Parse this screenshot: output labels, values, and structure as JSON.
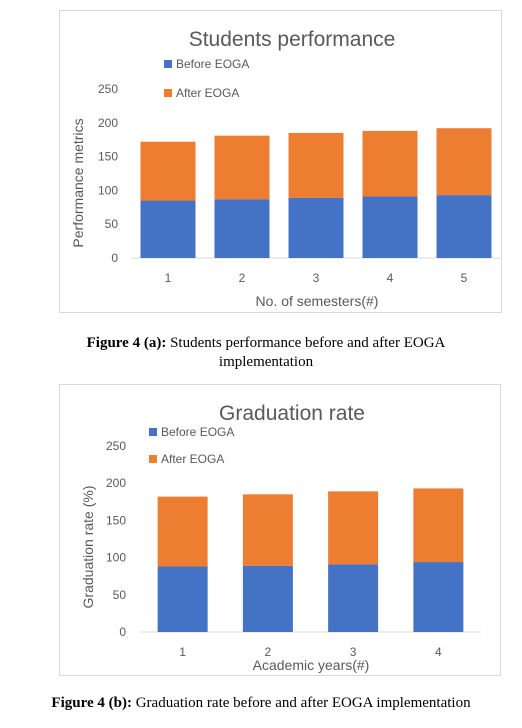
{
  "colors": {
    "before": "#4472c4",
    "after": "#ed7d31",
    "axis_text": "#595959",
    "grid": "#d9d9d9"
  },
  "chart_data": [
    {
      "type": "bar",
      "stacked": true,
      "title": "Students performance",
      "xlabel": "No. of semesters(#)",
      "ylabel": "Performance metrics",
      "categories": [
        "1",
        "2",
        "3",
        "4",
        "5"
      ],
      "yticks": [
        "0",
        "50",
        "100",
        "150",
        "200",
        "250"
      ],
      "ylim": [
        0,
        250
      ],
      "grid": false,
      "legend": "top",
      "series": [
        {
          "name": "Before EOGA",
          "values": [
            85,
            87,
            89,
            91,
            93
          ]
        },
        {
          "name": "After EOGA",
          "values": [
            87,
            94,
            96,
            97,
            99
          ]
        }
      ]
    },
    {
      "type": "bar",
      "stacked": true,
      "title": "Graduation rate",
      "xlabel": "Academic years(#)",
      "ylabel": "Graduation rate (%)",
      "categories": [
        "1",
        "2",
        "3",
        "4"
      ],
      "yticks": [
        "0",
        "50",
        "100",
        "150",
        "200",
        "250"
      ],
      "ylim": [
        0,
        250
      ],
      "grid": false,
      "legend": "top",
      "series": [
        {
          "name": "Before EOGA",
          "values": [
            88,
            89,
            91,
            94
          ]
        },
        {
          "name": "After EOGA",
          "values": [
            94,
            96,
            98,
            99
          ]
        }
      ]
    }
  ],
  "captions": {
    "a": {
      "label": "Figure 4 (a):",
      "text": " Students performance before and after EOGA implementation"
    },
    "b": {
      "label": "Figure 4 (b):",
      "text": " Graduation rate before and after EOGA implementation"
    }
  }
}
